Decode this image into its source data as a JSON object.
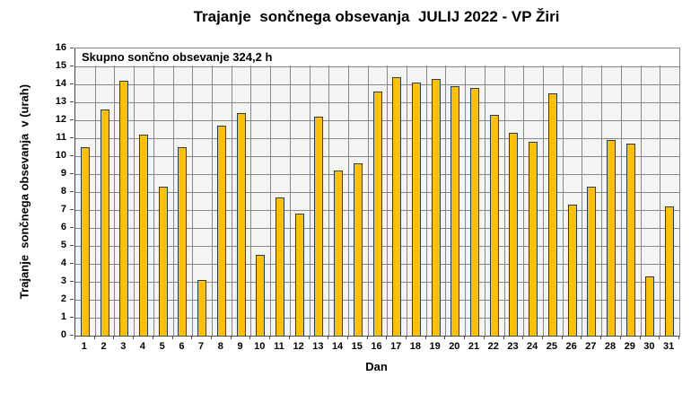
{
  "chart_data": {
    "type": "bar",
    "title": "Trajanje  sončnega obsevanja  JULIJ 2022 - VP Žiri",
    "annotation": "Skupno sončno obsevanje 324,2 h",
    "xlabel": "Dan",
    "ylabel": "Trajanje  sončnega obsevanja  v (urah)",
    "categories": [
      "1",
      "2",
      "3",
      "4",
      "5",
      "6",
      "7",
      "8",
      "9",
      "10",
      "11",
      "12",
      "13",
      "14",
      "15",
      "16",
      "17",
      "18",
      "19",
      "20",
      "21",
      "22",
      "23",
      "24",
      "25",
      "26",
      "27",
      "28",
      "29",
      "30",
      "31"
    ],
    "values": [
      10.5,
      12.6,
      14.2,
      11.2,
      8.3,
      10.5,
      3.1,
      11.7,
      12.4,
      4.5,
      7.7,
      6.8,
      12.2,
      9.2,
      9.6,
      13.6,
      14.4,
      14.1,
      14.3,
      13.9,
      13.8,
      12.3,
      11.3,
      10.8,
      13.5,
      7.3,
      8.3,
      10.9,
      10.7,
      3.3,
      7.2
    ],
    "ylim": [
      0,
      16
    ],
    "ytick_step": 1,
    "legend": "none",
    "grid": "horizontal-and-vertical",
    "colors": {
      "bar_fill": "#FFC000",
      "bar_border": "#1F4064",
      "plot_bg": "#F4F4F4",
      "gridline": "#878787",
      "axis_line": "#4A4A4A",
      "annotation_bg": "#FFFFFF",
      "text": "#000000"
    }
  }
}
